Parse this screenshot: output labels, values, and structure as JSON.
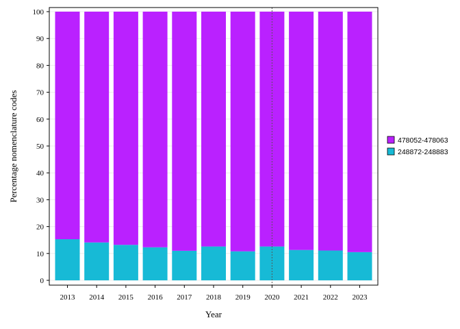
{
  "chart_data": {
    "type": "bar",
    "stacked": true,
    "xlabel": "Year",
    "ylabel": "Percentage nomenclature codes",
    "ylim": [
      0,
      100
    ],
    "yticks": [
      0,
      10,
      20,
      30,
      40,
      50,
      60,
      70,
      80,
      90,
      100
    ],
    "categories": [
      "2013",
      "2014",
      "2015",
      "2016",
      "2017",
      "2018",
      "2019",
      "2020",
      "2021",
      "2022",
      "2023"
    ],
    "series": [
      {
        "name": "248872-248883",
        "color": "#17BAD6",
        "values": [
          15.3,
          14.1,
          13.2,
          12.3,
          11.0,
          12.6,
          10.8,
          12.6,
          11.3,
          11.1,
          10.5
        ]
      },
      {
        "name": "478052-478063",
        "color": "#BA21FF",
        "values": [
          84.7,
          85.9,
          86.8,
          87.7,
          89.0,
          87.4,
          89.2,
          87.4,
          88.7,
          88.9,
          89.5
        ]
      }
    ],
    "reference_line": {
      "x": "2020",
      "style": "dotted"
    },
    "legend_order": [
      "478052-478063",
      "248872-248883"
    ],
    "legend_position": "right",
    "grid": true
  }
}
